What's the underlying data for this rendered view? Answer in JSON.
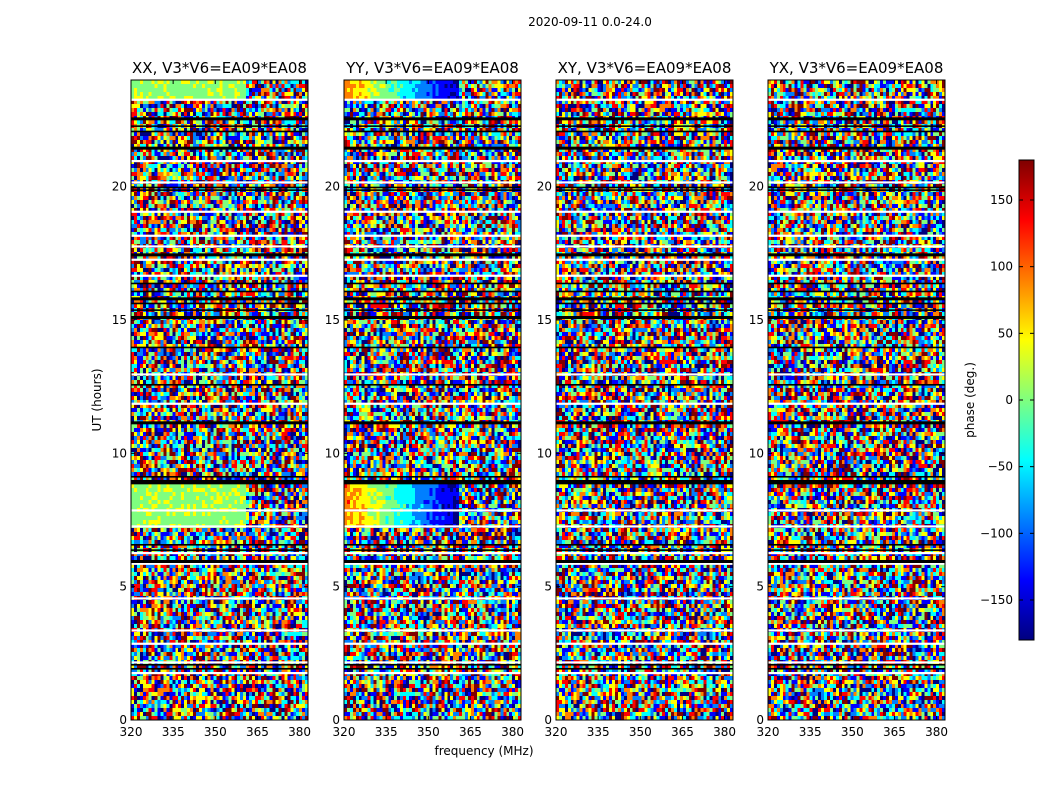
{
  "figure": {
    "title": "2020-09-11 0.0-24.0"
  },
  "chart_data": {
    "type": "heatmap",
    "panels": [
      {
        "title": "XX, V3*V6=EA09*EA08"
      },
      {
        "title": "YY, V3*V6=EA09*EA08"
      },
      {
        "title": "XY, V3*V6=EA09*EA08"
      },
      {
        "title": "YX, V3*V6=EA09*EA08"
      }
    ],
    "xlabel": "frequency (MHz)",
    "ylabel": "UT (hours)",
    "xlim": [
      320,
      383
    ],
    "ylim": [
      0,
      24
    ],
    "xticks": [
      320,
      335,
      350,
      365,
      380
    ],
    "yticks": [
      0,
      5,
      10,
      15,
      20
    ],
    "colorbar": {
      "label": "phase (deg.)",
      "range": [
        -180,
        180
      ],
      "ticks": [
        150,
        100,
        50,
        0,
        -50,
        -100,
        -150
      ],
      "tick_labels": [
        "150",
        "100",
        "50",
        "0",
        "−50",
        "−100",
        "−150"
      ],
      "colormap": "jet"
    },
    "flagged_color": "#ffffff",
    "colors": {
      "jet": [
        "#00007f",
        "#0000ff",
        "#007fff",
        "#00ffff",
        "#7fff7f",
        "#ffff00",
        "#ff7f00",
        "#ff0000",
        "#7f0000"
      ]
    }
  }
}
